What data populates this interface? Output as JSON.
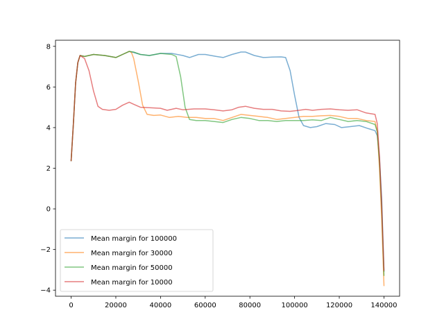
{
  "chart_data": {
    "type": "line",
    "title": "",
    "xlabel": "",
    "ylabel": "",
    "xlim": [
      -7000,
      147000
    ],
    "ylim": [
      -4.3,
      8.3
    ],
    "xticks": [
      0,
      20000,
      40000,
      60000,
      80000,
      100000,
      120000,
      140000
    ],
    "xtick_labels": [
      "0",
      "20000",
      "40000",
      "60000",
      "80000",
      "100000",
      "120000",
      "140000"
    ],
    "yticks": [
      -4,
      -2,
      0,
      2,
      4,
      6,
      8
    ],
    "ytick_labels": [
      "−4",
      "−2",
      "0",
      "2",
      "4",
      "6",
      "8"
    ],
    "grid": false,
    "legend_position": "lower-left",
    "series": [
      {
        "name": "Mean margin for 100000",
        "color": "#1f77b4",
        "points": [
          [
            0,
            2.35
          ],
          [
            1000,
            4.2
          ],
          [
            2000,
            6.2
          ],
          [
            3000,
            7.2
          ],
          [
            4000,
            7.55
          ],
          [
            6000,
            7.5
          ],
          [
            10000,
            7.6
          ],
          [
            15000,
            7.55
          ],
          [
            20000,
            7.45
          ],
          [
            23000,
            7.6
          ],
          [
            26000,
            7.75
          ],
          [
            28000,
            7.7
          ],
          [
            31000,
            7.6
          ],
          [
            35000,
            7.55
          ],
          [
            40000,
            7.65
          ],
          [
            45000,
            7.65
          ],
          [
            50000,
            7.55
          ],
          [
            53000,
            7.45
          ],
          [
            57000,
            7.6
          ],
          [
            60000,
            7.6
          ],
          [
            65000,
            7.5
          ],
          [
            68000,
            7.45
          ],
          [
            72000,
            7.6
          ],
          [
            76000,
            7.72
          ],
          [
            78000,
            7.72
          ],
          [
            82000,
            7.55
          ],
          [
            86000,
            7.45
          ],
          [
            90000,
            7.47
          ],
          [
            94000,
            7.48
          ],
          [
            96000,
            7.45
          ],
          [
            98000,
            6.8
          ],
          [
            100000,
            5.6
          ],
          [
            102000,
            4.5
          ],
          [
            104000,
            4.1
          ],
          [
            107000,
            4.0
          ],
          [
            110000,
            4.05
          ],
          [
            114000,
            4.2
          ],
          [
            118000,
            4.15
          ],
          [
            121000,
            4.0
          ],
          [
            125000,
            4.05
          ],
          [
            129000,
            4.1
          ],
          [
            133000,
            3.95
          ],
          [
            136000,
            3.85
          ],
          [
            137000,
            3.6
          ],
          [
            138000,
            2.5
          ],
          [
            139000,
            0.5
          ],
          [
            140000,
            -3.1
          ]
        ]
      },
      {
        "name": "Mean margin for 30000",
        "color": "#ff7f0e",
        "points": [
          [
            0,
            2.35
          ],
          [
            1000,
            4.2
          ],
          [
            2000,
            6.2
          ],
          [
            3000,
            7.2
          ],
          [
            4000,
            7.55
          ],
          [
            6000,
            7.5
          ],
          [
            10000,
            7.6
          ],
          [
            15000,
            7.55
          ],
          [
            20000,
            7.45
          ],
          [
            23000,
            7.6
          ],
          [
            26000,
            7.75
          ],
          [
            27000,
            7.7
          ],
          [
            28000,
            7.4
          ],
          [
            30000,
            6.3
          ],
          [
            32000,
            5.1
          ],
          [
            34000,
            4.65
          ],
          [
            37000,
            4.6
          ],
          [
            40000,
            4.62
          ],
          [
            44000,
            4.5
          ],
          [
            48000,
            4.55
          ],
          [
            52000,
            4.5
          ],
          [
            56000,
            4.5
          ],
          [
            60000,
            4.45
          ],
          [
            64000,
            4.45
          ],
          [
            68000,
            4.35
          ],
          [
            72000,
            4.5
          ],
          [
            76000,
            4.65
          ],
          [
            80000,
            4.6
          ],
          [
            84000,
            4.55
          ],
          [
            88000,
            4.5
          ],
          [
            92000,
            4.4
          ],
          [
            96000,
            4.45
          ],
          [
            100000,
            4.5
          ],
          [
            104000,
            4.55
          ],
          [
            108000,
            4.55
          ],
          [
            112000,
            4.58
          ],
          [
            116000,
            4.6
          ],
          [
            120000,
            4.55
          ],
          [
            124000,
            4.45
          ],
          [
            128000,
            4.45
          ],
          [
            132000,
            4.35
          ],
          [
            136000,
            4.3
          ],
          [
            137000,
            3.8
          ],
          [
            138000,
            2.0
          ],
          [
            139000,
            -0.5
          ],
          [
            140000,
            -3.8
          ]
        ]
      },
      {
        "name": "Mean margin for 50000",
        "color": "#2ca02c",
        "points": [
          [
            0,
            2.35
          ],
          [
            1000,
            4.2
          ],
          [
            2000,
            6.2
          ],
          [
            3000,
            7.2
          ],
          [
            4000,
            7.55
          ],
          [
            6000,
            7.5
          ],
          [
            10000,
            7.6
          ],
          [
            15000,
            7.55
          ],
          [
            20000,
            7.45
          ],
          [
            23000,
            7.6
          ],
          [
            26000,
            7.75
          ],
          [
            28000,
            7.72
          ],
          [
            31000,
            7.6
          ],
          [
            35000,
            7.55
          ],
          [
            40000,
            7.65
          ],
          [
            45000,
            7.6
          ],
          [
            47000,
            7.5
          ],
          [
            49000,
            6.5
          ],
          [
            51000,
            5.0
          ],
          [
            53000,
            4.4
          ],
          [
            56000,
            4.35
          ],
          [
            60000,
            4.35
          ],
          [
            64000,
            4.3
          ],
          [
            68000,
            4.25
          ],
          [
            72000,
            4.4
          ],
          [
            76000,
            4.5
          ],
          [
            80000,
            4.45
          ],
          [
            84000,
            4.35
          ],
          [
            88000,
            4.35
          ],
          [
            92000,
            4.3
          ],
          [
            96000,
            4.35
          ],
          [
            100000,
            4.35
          ],
          [
            104000,
            4.35
          ],
          [
            108000,
            4.38
          ],
          [
            112000,
            4.35
          ],
          [
            116000,
            4.5
          ],
          [
            120000,
            4.4
          ],
          [
            124000,
            4.3
          ],
          [
            128000,
            4.35
          ],
          [
            132000,
            4.3
          ],
          [
            136000,
            4.15
          ],
          [
            137000,
            3.8
          ],
          [
            138000,
            2.3
          ],
          [
            139000,
            0.0
          ],
          [
            140000,
            -3.3
          ]
        ]
      },
      {
        "name": "Mean margin for 10000",
        "color": "#d62728",
        "points": [
          [
            0,
            2.35
          ],
          [
            1000,
            4.2
          ],
          [
            2000,
            6.2
          ],
          [
            3000,
            7.2
          ],
          [
            4000,
            7.55
          ],
          [
            6000,
            7.4
          ],
          [
            8000,
            6.8
          ],
          [
            10000,
            5.8
          ],
          [
            12000,
            5.05
          ],
          [
            14000,
            4.9
          ],
          [
            17000,
            4.85
          ],
          [
            20000,
            4.9
          ],
          [
            23000,
            5.1
          ],
          [
            26000,
            5.25
          ],
          [
            28000,
            5.15
          ],
          [
            31000,
            5.0
          ],
          [
            35000,
            4.98
          ],
          [
            40000,
            4.95
          ],
          [
            43000,
            4.85
          ],
          [
            47000,
            4.95
          ],
          [
            50000,
            4.88
          ],
          [
            55000,
            4.92
          ],
          [
            60000,
            4.92
          ],
          [
            64000,
            4.88
          ],
          [
            68000,
            4.82
          ],
          [
            72000,
            4.88
          ],
          [
            75000,
            5.0
          ],
          [
            78000,
            5.05
          ],
          [
            82000,
            4.95
          ],
          [
            86000,
            4.9
          ],
          [
            90000,
            4.9
          ],
          [
            94000,
            4.82
          ],
          [
            98000,
            4.8
          ],
          [
            102000,
            4.85
          ],
          [
            105000,
            4.9
          ],
          [
            108000,
            4.85
          ],
          [
            112000,
            4.9
          ],
          [
            116000,
            4.92
          ],
          [
            120000,
            4.88
          ],
          [
            124000,
            4.85
          ],
          [
            128000,
            4.88
          ],
          [
            132000,
            4.72
          ],
          [
            136000,
            4.65
          ],
          [
            137000,
            4.2
          ],
          [
            138000,
            2.6
          ],
          [
            139000,
            0.2
          ],
          [
            140000,
            -3.05
          ]
        ]
      }
    ]
  }
}
